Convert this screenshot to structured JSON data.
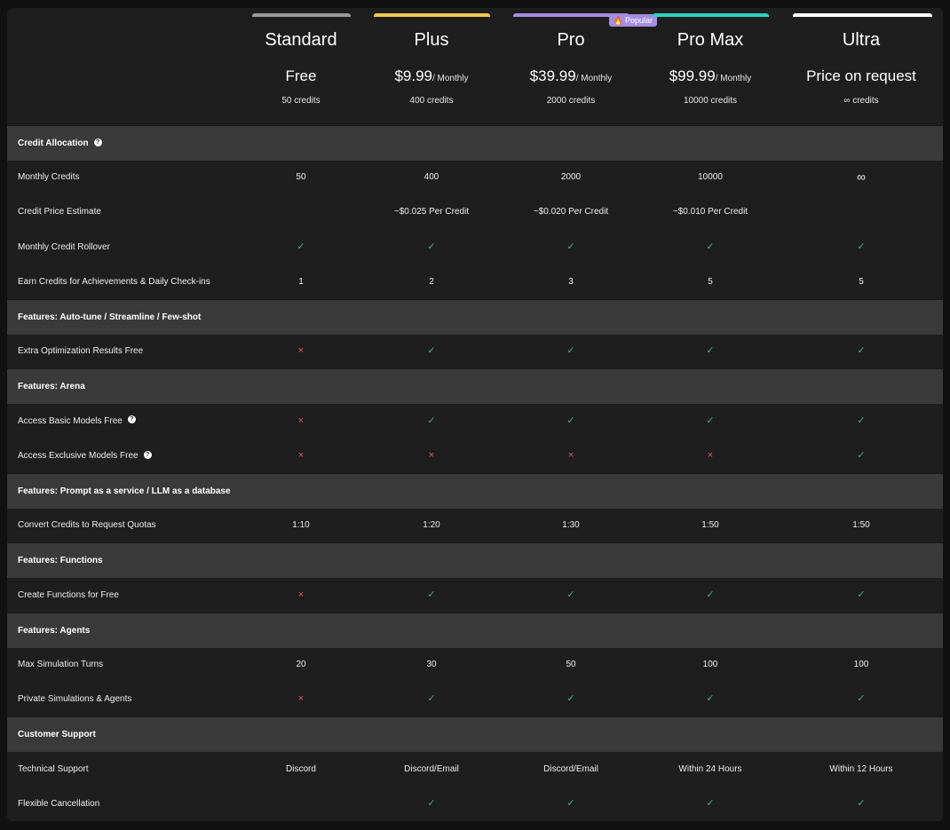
{
  "plans": [
    {
      "name": "Standard",
      "price": "Free",
      "period": "",
      "credits": "50 credits",
      "bar_color": "#9a9a9a",
      "badge": ""
    },
    {
      "name": "Plus",
      "price": "$9.99",
      "period": "/ Monthly",
      "credits": "400 credits",
      "bar_color": "#f2c94c",
      "badge": ""
    },
    {
      "name": "Pro",
      "price": "$39.99",
      "period": "/ Monthly",
      "credits": "2000 credits",
      "bar_color": "#a58ee0",
      "badge": "Popular"
    },
    {
      "name": "Pro Max",
      "price": "$99.99",
      "period": "/ Monthly",
      "credits": "10000 credits",
      "bar_color": "#2dd4bf",
      "badge": ""
    },
    {
      "name": "Ultra",
      "price": "Price on request",
      "period": "",
      "credits": "∞ credits",
      "bar_color": "#ffffff",
      "badge": ""
    }
  ],
  "colors": {
    "check": "#3fb27f",
    "cross": "#e25b5b",
    "section_bg": "#3a3a3a",
    "panel_bg": "#1e1e1e"
  },
  "icons": {
    "check": "✓",
    "cross": "×",
    "help": "?",
    "infinity": "∞",
    "flame": "🔥"
  },
  "rows": [
    {
      "type": "section",
      "label": "Credit Allocation",
      "help": true
    },
    {
      "type": "row",
      "label": "Monthly Credits",
      "cells": [
        "50",
        "400",
        "2000",
        "10000",
        "∞"
      ]
    },
    {
      "type": "row",
      "label": "Credit Price Estimate",
      "cells": [
        "",
        "~$0.025 Per Credit",
        "~$0.020 Per Credit",
        "~$0.010 Per Credit",
        ""
      ]
    },
    {
      "type": "row",
      "label": "Monthly Credit Rollover",
      "cells": [
        "check",
        "check",
        "check",
        "check",
        "check"
      ]
    },
    {
      "type": "row",
      "label": "Earn Credits for Achievements & Daily Check-ins",
      "cells": [
        "1",
        "2",
        "3",
        "5",
        "5"
      ]
    },
    {
      "type": "section",
      "label": "Features: Auto-tune / Streamline / Few-shot"
    },
    {
      "type": "row",
      "label": "Extra Optimization Results Free",
      "cells": [
        "cross",
        "check",
        "check",
        "check",
        "check"
      ]
    },
    {
      "type": "section",
      "label": "Features: Arena"
    },
    {
      "type": "row",
      "label": "Access Basic Models Free",
      "help": true,
      "cells": [
        "cross",
        "check",
        "check",
        "check",
        "check"
      ]
    },
    {
      "type": "row",
      "label": "Access Exclusive Models Free",
      "help": true,
      "cells": [
        "cross",
        "cross",
        "cross",
        "cross",
        "check"
      ]
    },
    {
      "type": "section",
      "label": "Features: Prompt as a service / LLM as a database"
    },
    {
      "type": "row",
      "label": "Convert Credits to Request Quotas",
      "cells": [
        "1:10",
        "1:20",
        "1:30",
        "1:50",
        "1:50"
      ]
    },
    {
      "type": "section",
      "label": "Features: Functions"
    },
    {
      "type": "row",
      "label": "Create Functions for Free",
      "cells": [
        "cross",
        "check",
        "check",
        "check",
        "check"
      ]
    },
    {
      "type": "section",
      "label": "Features: Agents"
    },
    {
      "type": "row",
      "label": "Max Simulation Turns",
      "cells": [
        "20",
        "30",
        "50",
        "100",
        "100"
      ]
    },
    {
      "type": "row",
      "label": "Private Simulations & Agents",
      "cells": [
        "cross",
        "check",
        "check",
        "check",
        "check"
      ]
    },
    {
      "type": "section",
      "label": "Customer Support"
    },
    {
      "type": "row",
      "label": "Technical Support",
      "cells": [
        "Discord",
        "Discord/Email",
        "Discord/Email",
        "Within 24 Hours",
        "Within 12 Hours"
      ]
    },
    {
      "type": "row",
      "label": "Flexible Cancellation",
      "cells": [
        "",
        "check",
        "check",
        "check",
        "check"
      ]
    }
  ]
}
